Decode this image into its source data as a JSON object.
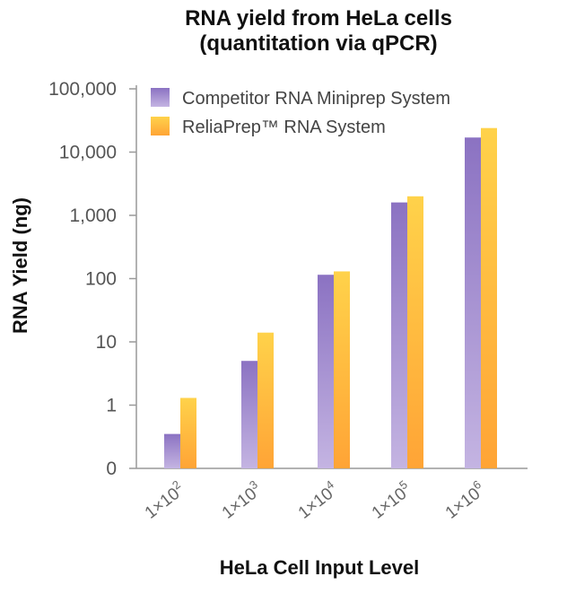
{
  "chart_data": {
    "type": "bar",
    "title_line1": "RNA yield from HeLa cells",
    "title_line2": "(quantitation via qPCR)",
    "xlabel": "HeLa Cell Input Level",
    "ylabel": "RNA Yield (ng)",
    "yscale": "log",
    "ylim": [
      0.1,
      100000
    ],
    "y_ticks": [
      {
        "value": 0.1,
        "label": "0"
      },
      {
        "value": 1,
        "label": "1"
      },
      {
        "value": 10,
        "label": "10"
      },
      {
        "value": 100,
        "label": "100"
      },
      {
        "value": 1000,
        "label": "1,000"
      },
      {
        "value": 10000,
        "label": "10,000"
      },
      {
        "value": 100000,
        "label": "100,000"
      }
    ],
    "categories": [
      {
        "base": "1×10",
        "exp": "2"
      },
      {
        "base": "1×10",
        "exp": "3"
      },
      {
        "base": "1×10",
        "exp": "4"
      },
      {
        "base": "1×10",
        "exp": "5"
      },
      {
        "base": "1×10",
        "exp": "6"
      }
    ],
    "series": [
      {
        "name": "Competitor RNA Miniprep System",
        "color": "#8b72c2",
        "color_light": "#c4b4e2",
        "values": [
          0.35,
          5,
          115,
          1600,
          17000
        ]
      },
      {
        "name": "ReliaPrep™ RNA System",
        "color": "#ffd24a",
        "color_dark": "#ffa436",
        "values": [
          1.3,
          14,
          130,
          2000,
          24000
        ]
      }
    ],
    "grid": false,
    "legend_position": "top-left"
  }
}
